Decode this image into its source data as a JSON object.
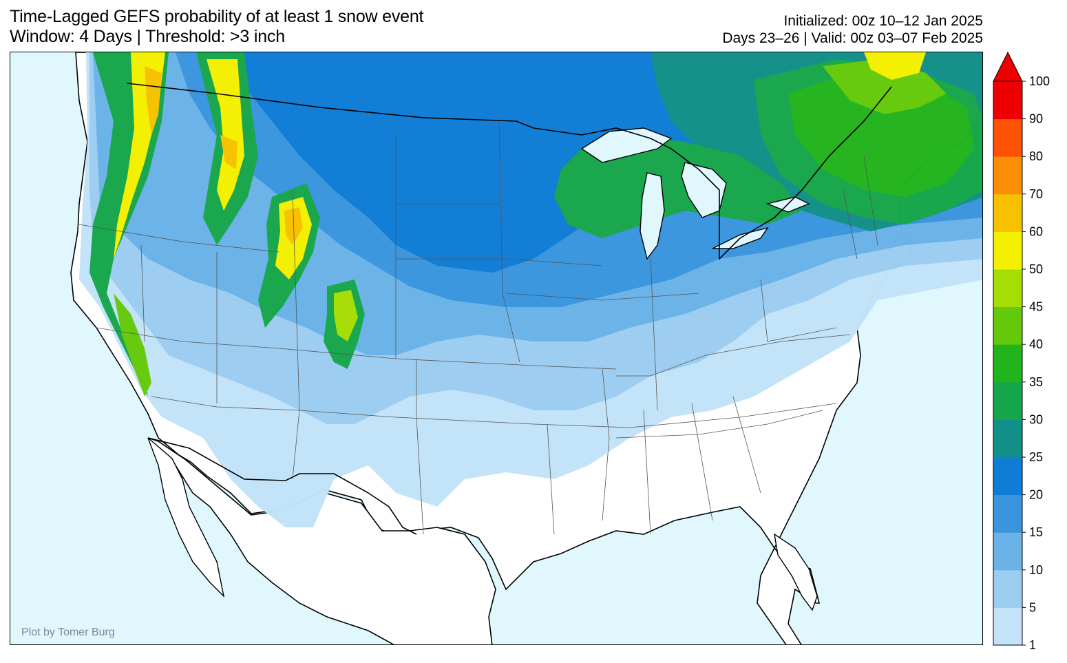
{
  "title": {
    "line1": "Time-Lagged GEFS probability of at least 1 snow event",
    "line2": "Window: 4 Days | Threshold: >3 inch"
  },
  "info": {
    "line1": "Initialized: 00z 10–12 Jan 2025",
    "line2": "Days 23–26 | Valid: 00z 03–07 Feb 2025"
  },
  "credit": "Plot by Tomer Burg",
  "colorbar": {
    "levels": [
      "1",
      "5",
      "10",
      "15",
      "20",
      "25",
      "30",
      "35",
      "40",
      "45",
      "50",
      "60",
      "70",
      "80",
      "90",
      "100"
    ],
    "colors": [
      "#c2e3f8",
      "#9ccdf1",
      "#6ab2e8",
      "#3a95de",
      "#0f7cd6",
      "#118f88",
      "#16a64a",
      "#22b41c",
      "#64c90a",
      "#a6dd05",
      "#f4f000",
      "#f8c100",
      "#fb8e06",
      "#fd5203",
      "#ee0000"
    ],
    "extend_color": "#ee0000"
  },
  "map_colors": {
    "ocean": "#e0f7fe",
    "land": "#ffffff"
  }
}
